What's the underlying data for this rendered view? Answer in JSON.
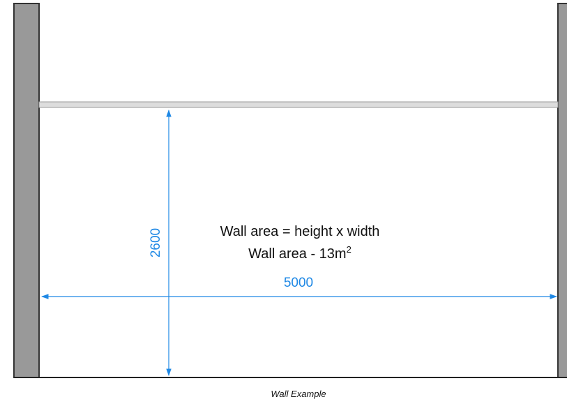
{
  "dimensions": {
    "height_label": "2600",
    "width_label": "5000"
  },
  "formula": {
    "line1": "Wall area = height x width",
    "line2_prefix": "Wall area - 13m",
    "line2_superscript": "2"
  },
  "caption": "Wall Example",
  "colors": {
    "wall_fill": "#999999",
    "beam_fill": "#dddddd",
    "dimension": "#1e88e5",
    "text": "#111111"
  }
}
